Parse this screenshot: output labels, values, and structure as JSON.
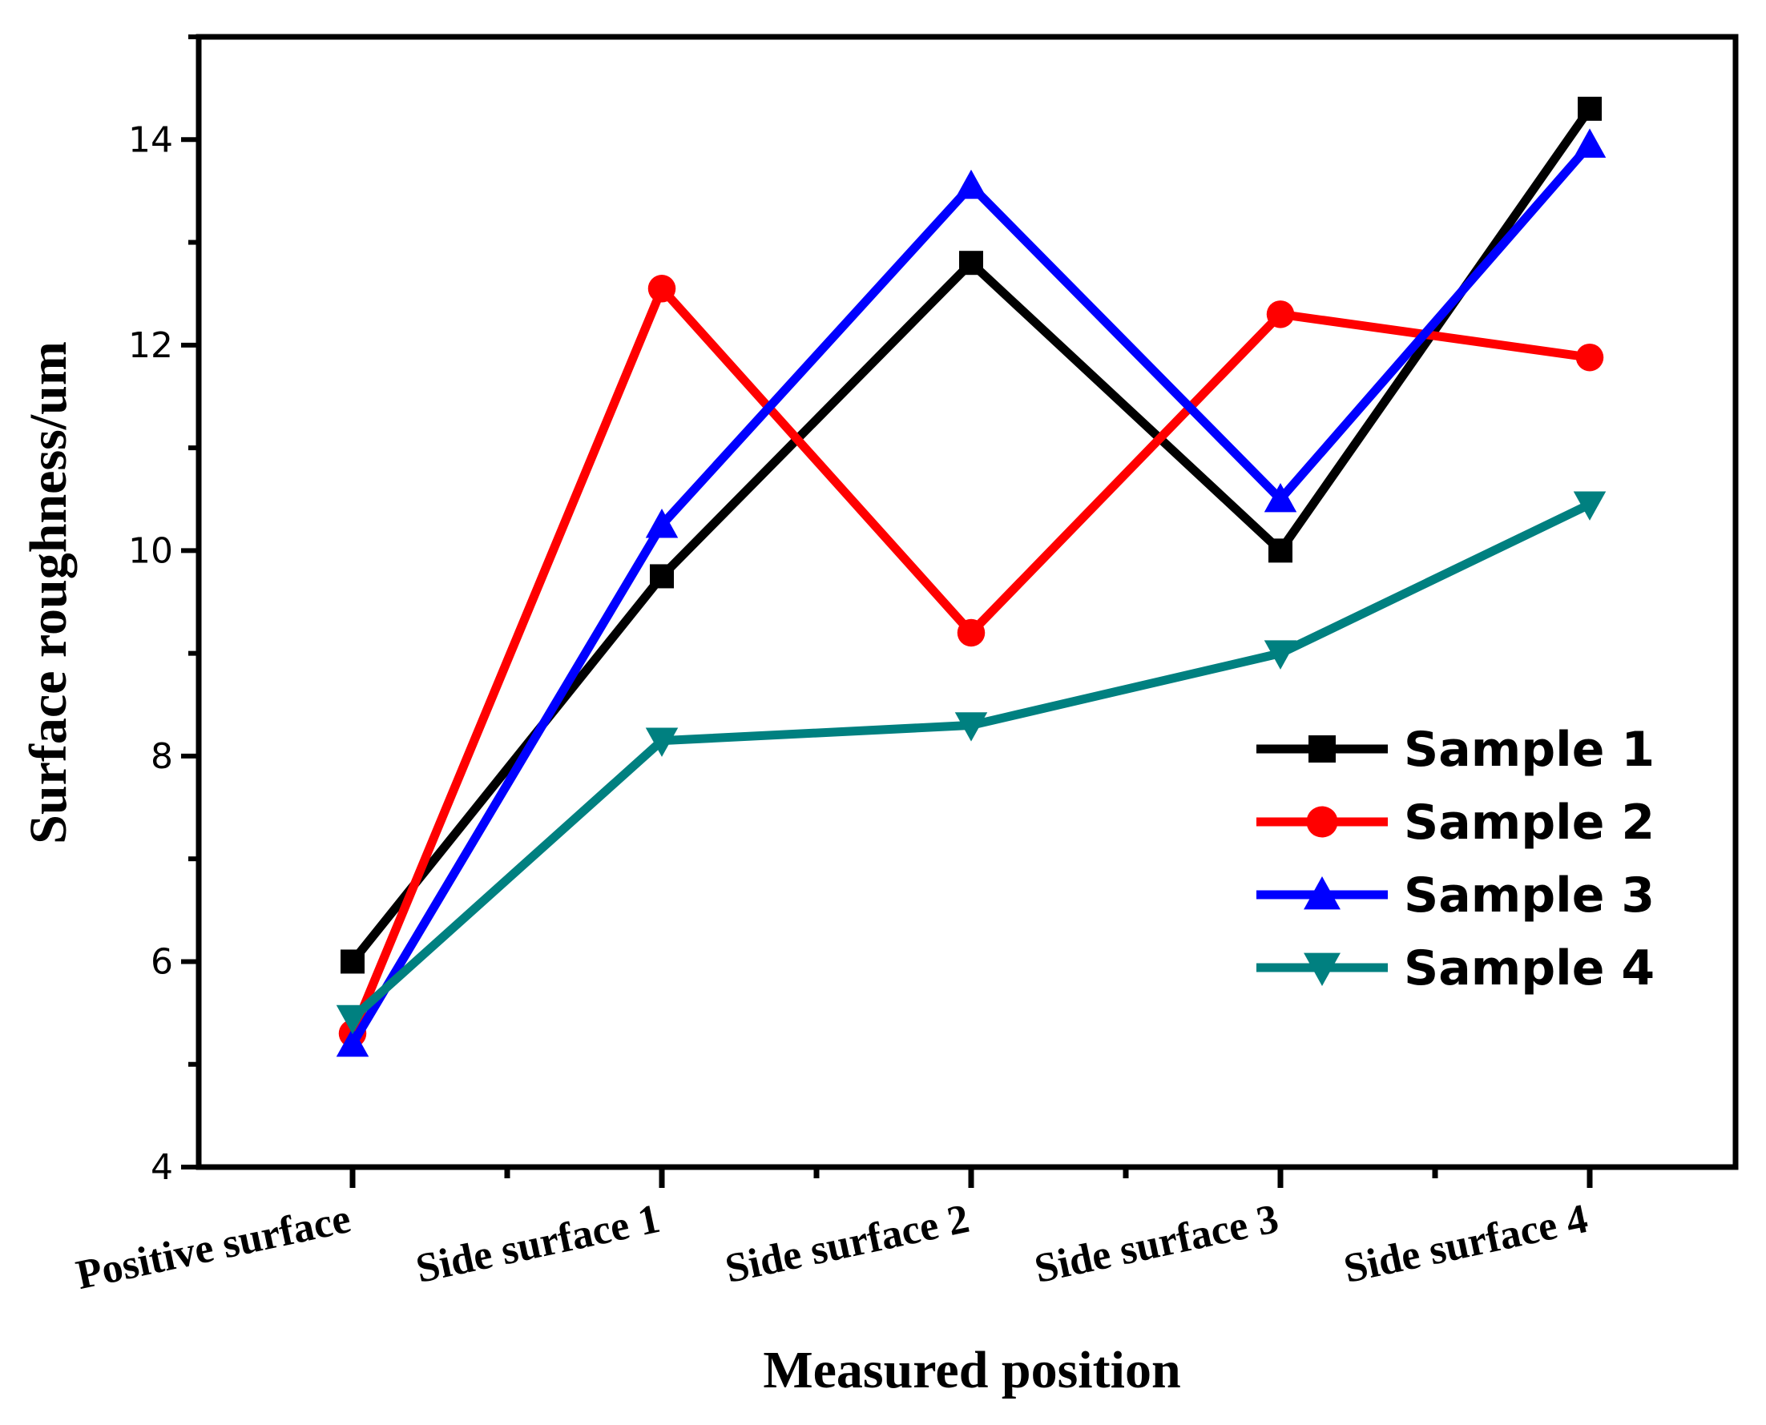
{
  "chart_data": {
    "type": "line",
    "title": "",
    "xlabel": "Measured position",
    "ylabel": "Surface roughness/um",
    "categories": [
      "Positive surface",
      "Side surface 1",
      "Side surface 2",
      "Side surface 3",
      "Side surface 4"
    ],
    "ylim": [
      4,
      15
    ],
    "yticks": [
      4,
      6,
      8,
      10,
      12,
      14
    ],
    "grid": false,
    "legend_position": "right",
    "series": [
      {
        "name": "Sample 1",
        "color": "#000000",
        "marker": "square",
        "values": [
          6.0,
          9.75,
          12.8,
          10.0,
          14.3
        ]
      },
      {
        "name": "Sample 2",
        "color": "#ff0000",
        "marker": "circle",
        "values": [
          5.3,
          12.55,
          9.2,
          12.3,
          11.88
        ]
      },
      {
        "name": "Sample 3",
        "color": "#0000ff",
        "marker": "triangle-up",
        "values": [
          5.2,
          10.25,
          13.55,
          10.5,
          13.95
        ]
      },
      {
        "name": "Sample 4",
        "color": "#008080",
        "marker": "triangle-down",
        "values": [
          5.45,
          8.15,
          8.3,
          9.0,
          10.45
        ]
      }
    ]
  }
}
